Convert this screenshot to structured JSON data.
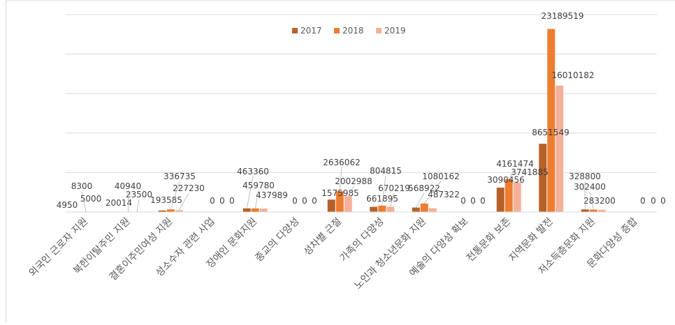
{
  "chart_data": {
    "type": "bar",
    "title": "",
    "xlabel": "",
    "ylabel": "",
    "ylim": [
      0,
      25000000
    ],
    "grid": true,
    "legend_position": "top-center",
    "categories": [
      "외국인 근로자 지원",
      "북한이탈주민 지원",
      "결혼이주민여성 지원",
      "성소수자 관련 사업",
      "장애인 문화지원",
      "종교의 다양성",
      "성차별 근절",
      "가족의 다양성",
      "노인과 청소년문화 지원",
      "예술의 다양성 확보",
      "전통문화 보존",
      "지역문화 발전",
      "저소득층문화 지원",
      "문화다양성 증합"
    ],
    "series": [
      {
        "name": "2017",
        "color": "#b5622a",
        "values": [
          4950,
          20014,
          193585,
          0,
          463360,
          0,
          1575985,
          661895,
          568922,
          0,
          3090456,
          8651549,
          328800,
          0
        ]
      },
      {
        "name": "2018",
        "color": "#ed7d31",
        "values": [
          8300,
          40940,
          336735,
          0,
          459780,
          0,
          2636062,
          804815,
          1080162,
          0,
          4161474,
          23189519,
          302400,
          0
        ]
      },
      {
        "name": "2019",
        "color": "#f4b19a",
        "values": [
          5000,
          23500,
          227230,
          0,
          437989,
          0,
          2002988,
          670219,
          487322,
          0,
          3741885,
          16010182,
          283200,
          0
        ]
      }
    ],
    "data_labels": [
      [
        "4950",
        "8300",
        "5000"
      ],
      [
        "20014",
        "40940",
        "23500"
      ],
      [
        "193585",
        "336735",
        "227230"
      ],
      [
        "0",
        "0",
        "0"
      ],
      [
        "463360",
        "459780",
        "437989"
      ],
      [
        "0",
        "0",
        "0"
      ],
      [
        "1575985",
        "2636062",
        "2002988"
      ],
      [
        "661895",
        "804815",
        "670219"
      ],
      [
        "568922",
        "1080162",
        "487322"
      ],
      [
        "0",
        "0",
        "0"
      ],
      [
        "3090456",
        "4161474",
        "3741885"
      ],
      [
        "8651549",
        "23189519",
        "16010182"
      ],
      [
        "328800",
        "302400",
        "283200"
      ],
      [
        "0",
        "0",
        "0"
      ]
    ]
  }
}
